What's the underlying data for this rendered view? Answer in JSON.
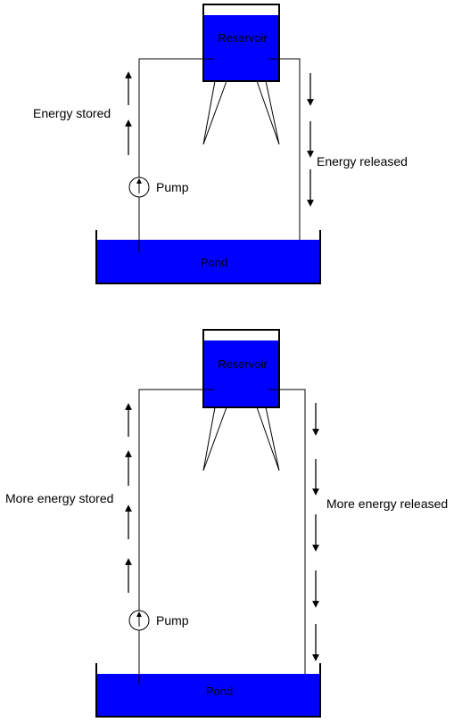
{
  "colors": {
    "water": "#0000ff",
    "line": "#000000",
    "background": "#ffffff"
  },
  "panels": [
    {
      "reservoir_label": "Reservoir",
      "pond_label": "Pond",
      "pump_label": "Pump",
      "stored_label": "Energy stored",
      "released_label": "Energy released"
    },
    {
      "reservoir_label": "Reservoir",
      "pond_label": "Pond",
      "pump_label": "Pump",
      "stored_label": "More energy stored",
      "released_label": "More energy released"
    }
  ]
}
